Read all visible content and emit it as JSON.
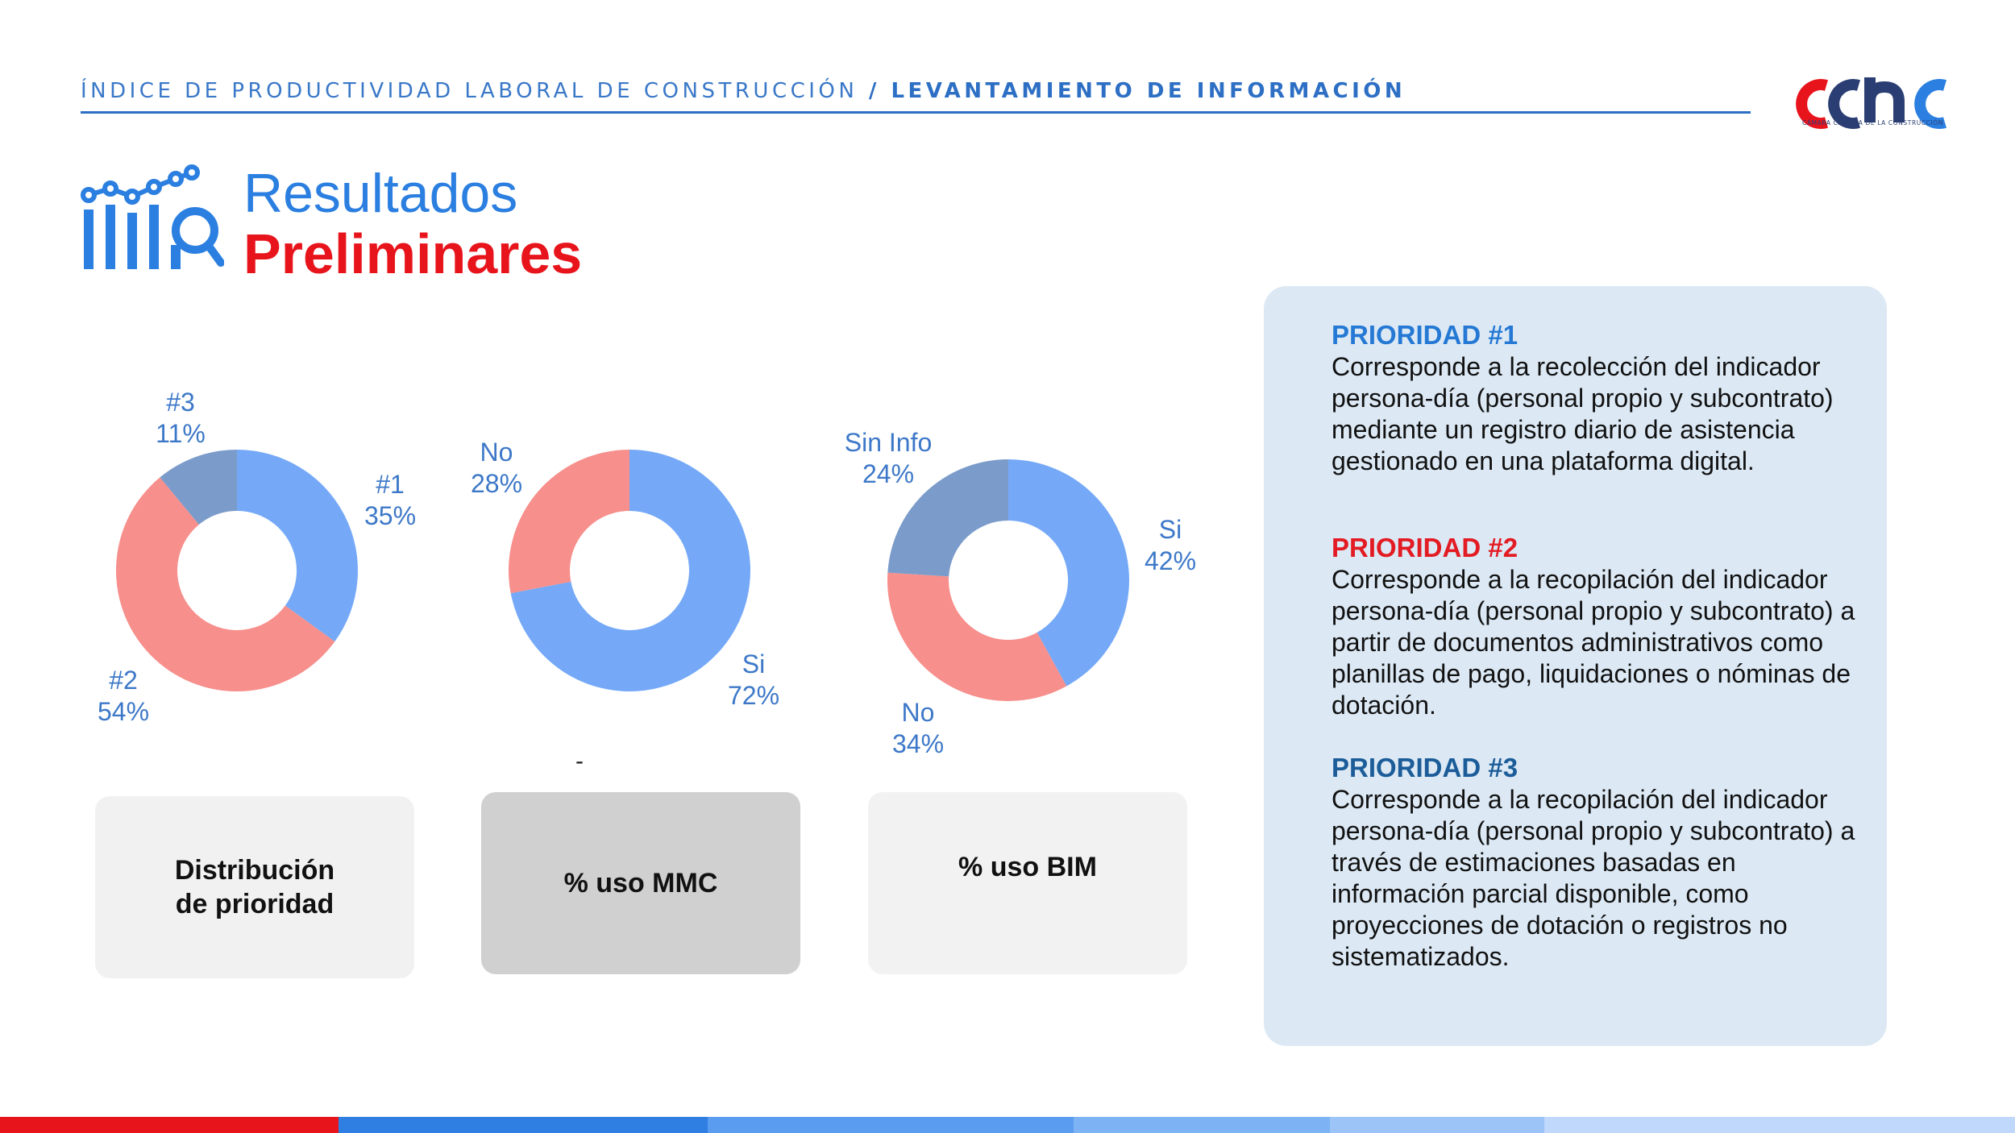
{
  "header": {
    "left_text": "ÍNDICE DE PRODUCTIVIDAD LABORAL DE CONSTRUCCIÓN",
    "separator": " / ",
    "right_text": "LEVANTAMIENTO DE INFORMACIÓN"
  },
  "logo": {
    "mark": "cchc",
    "subtitle": "CÁMARA CHILENA DE LA CONSTRUCCIÓN"
  },
  "title": {
    "line1": "Resultados",
    "line2": "Preliminares",
    "icon": "chart-magnifier-icon"
  },
  "chart_data": [
    {
      "type": "pie",
      "title": "Distribución de prioridad",
      "categories": [
        "#1",
        "#2",
        "#3"
      ],
      "values": [
        35,
        54,
        11
      ],
      "colors": [
        "#75a9f7",
        "#f78f8c",
        "#7b9ccb"
      ],
      "label_color": "#3d78c8"
    },
    {
      "type": "pie",
      "title": "% uso MMC",
      "categories": [
        "Si",
        "No"
      ],
      "values": [
        72,
        28
      ],
      "colors": [
        "#75a9f7",
        "#f78f8c"
      ],
      "label_color": "#3d78c8"
    },
    {
      "type": "pie",
      "title": "% uso BIM",
      "categories": [
        "Si",
        "No",
        "Sin Info"
      ],
      "values": [
        42,
        34,
        24
      ],
      "colors": [
        "#75a9f7",
        "#f78f8c",
        "#7b9ccb"
      ],
      "label_color": "#3d78c8"
    }
  ],
  "pills": {
    "chart1_line1": "Distribución",
    "chart1_line2": "de prioridad",
    "chart2": "% uso MMC",
    "chart3": "% uso BIM",
    "dash": "-"
  },
  "priorities": [
    {
      "heading": "PRIORIDAD #1",
      "text": "Corresponde a la recolección del indicador persona-día (personal propio y subcontrato) mediante un registro diario de asistencia gestionado en una plataforma digital."
    },
    {
      "heading": "PRIORIDAD #2",
      "text": "Corresponde a la recopilación del indicador persona-día (personal propio y subcontrato) a partir de documentos administrativos como planillas de pago, liquidaciones o nóminas de dotación."
    },
    {
      "heading": "PRIORIDAD #3",
      "text": "Corresponde a la recopilación del indicador persona-día (personal propio y subcontrato) a través de estimaciones basadas en información parcial disponible, como proyecciones de dotación o registros no sistematizados."
    }
  ],
  "colors": {
    "brand_blue": "#2b7fe0",
    "brand_red": "#e8141c",
    "bottom_bar": [
      "#e8141c",
      "#2f7fe3",
      "#5a9cf0",
      "#7db2f4",
      "#9cc4f7",
      "#bfd8fb"
    ]
  }
}
